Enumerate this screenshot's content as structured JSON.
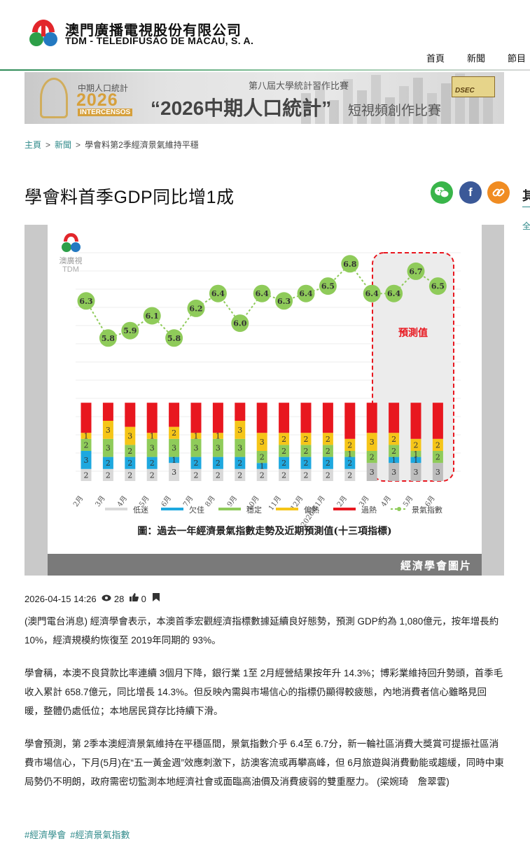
{
  "header": {
    "name_cn": "澳門廣播電視股份有限公司",
    "name_en": "TDM - TELEDIFUSÃO DE MACAU, S. A.",
    "nav": [
      "首頁",
      "新聞",
      "節目"
    ]
  },
  "banner": {
    "left_line1": "中期人口統計",
    "left_year": "2026",
    "left_line3": "INTERCENSOS",
    "subtitle": "第八屆大學統計習作比賽",
    "title": "“2026中期人口統計”",
    "title_suffix": "短視頻創作比賽",
    "partner": "DSEC"
  },
  "breadcrumb": {
    "home": "主頁",
    "section": "新聞",
    "current": "學會料第2季經濟景氣維持平穩"
  },
  "article": {
    "title": "學會料首季GDP同比增1成",
    "date": "2026-04-15 14:26",
    "views": "28",
    "likes": "0",
    "paragraphs": [
      "(澳門電台消息) 經濟學會表示，本澳首季宏觀經濟指標數據延續良好態勢，預測 GDP約為 1,080億元，按年增長約 10%，經濟規模約恢復至 2019年同期的 93%。",
      "學會稱，本澳不良貸款比率連續 3個月下降，銀行業 1至 2月經營結果按年升 14.3%；博彩業維持回升勢頭，首季毛收入累計 658.7億元，同比增長 14.3%。但反映內需與市場信心的指標仍顯得較疲態，內地消費者信心雖略見回暖，整體仍處低位；本地居民貸存比持續下滑。",
      "學會預測，第 2季本澳經濟景氣維持在平穩區間，景氣指數介乎 6.4至 6.7分，新一輪社區消費大獎賞可提振社區消費市場信心，下月(5月)在“五一黃金週”效應刺激下，訪澳客流或再攀高峰，但 6月旅遊與消費動能或趨緩，同時中東局勢仍不明朗，政府需密切監測本地經濟社會或面臨高油價及消費疲弱的雙重壓力。 (梁婉琦　詹翠雲)"
    ],
    "tags": [
      "#經濟學會",
      "#經濟景氣指數"
    ]
  },
  "share": {
    "wechat": "wechat",
    "facebook": "f",
    "link": "link"
  },
  "side": {
    "heading": "其",
    "link": "全"
  },
  "figure": {
    "logo_text": "澳廣視",
    "logo_en": "TDM",
    "caption": "圖：過去一年經濟景氣指數走勢及近期預測值(十三項指標)",
    "credit": "經濟學會圖片",
    "forecast_label": "預測值"
  },
  "colors": {
    "slow": "#d9d9d9",
    "cold": "#1ea8df",
    "stable": "#8fcb5a",
    "warm": "#f5c518",
    "hot": "#e8171f",
    "brand": "#2f8a8a"
  },
  "chart_data": {
    "type": "bar+line",
    "title": "過去一年經濟景氣指數走勢及近期預測值(十三項指標)",
    "categories": [
      "2月",
      "3月",
      "4月",
      "5月",
      "6月",
      "7月",
      "8月",
      "9月",
      "10月",
      "11月",
      "12月",
      "2026年1月",
      "2月",
      "3月",
      "4月",
      "5月",
      "6月"
    ],
    "index": [
      6.3,
      5.8,
      5.9,
      6.1,
      5.8,
      6.2,
      6.4,
      6.0,
      6.4,
      6.3,
      6.4,
      6.5,
      6.8,
      6.4,
      6.4,
      6.7,
      6.5
    ],
    "series": [
      {
        "name": "低迷",
        "key": "slow",
        "values": [
          2,
          2,
          2,
          2,
          3,
          2,
          2,
          2,
          2,
          2,
          2,
          2,
          2,
          3,
          3,
          3,
          3
        ]
      },
      {
        "name": "欠佳",
        "key": "cold",
        "values": [
          3,
          2,
          2,
          2,
          1,
          2,
          2,
          2,
          1,
          2,
          2,
          2,
          2,
          0,
          1,
          1,
          0
        ]
      },
      {
        "name": "穩定",
        "key": "stable",
        "values": [
          2,
          3,
          2,
          3,
          3,
          3,
          3,
          3,
          2,
          2,
          2,
          2,
          1,
          2,
          2,
          1,
          2
        ]
      },
      {
        "name": "偏熱",
        "key": "warm",
        "values": [
          1,
          3,
          3,
          1,
          2,
          1,
          1,
          3,
          3,
          2,
          2,
          2,
          2,
          3,
          2,
          2,
          2
        ]
      },
      {
        "name": "過熱",
        "key": "hot",
        "values": [
          5,
          3,
          4,
          5,
          4,
          5,
          5,
          3,
          5,
          5,
          5,
          5,
          6,
          5,
          5,
          6,
          6
        ]
      }
    ],
    "legend_line": "景氣指數",
    "forecast_from_index": 13,
    "bar_ylim": [
      0,
      13
    ],
    "index_ylim": [
      5,
      7
    ]
  }
}
